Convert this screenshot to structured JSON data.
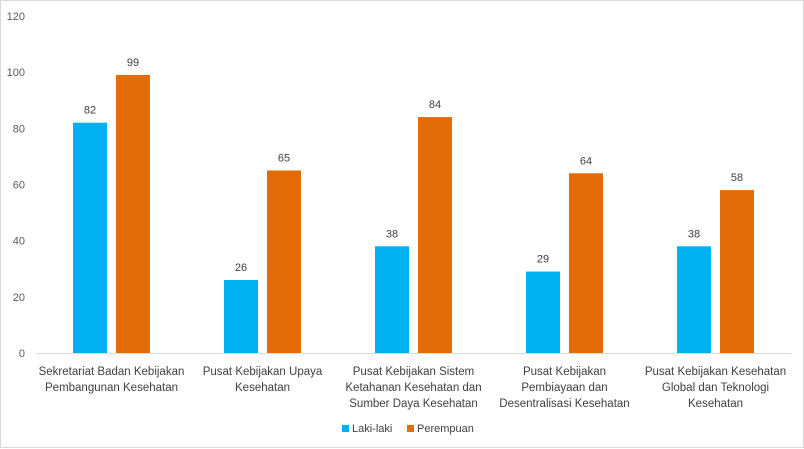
{
  "chart_data": {
    "type": "bar",
    "categories": [
      [
        "Sekretariat Badan Kebijakan",
        "Pembangunan Kesehatan"
      ],
      [
        "Pusat Kebijakan Upaya",
        "Kesehatan"
      ],
      [
        "Pusat Kebijakan Sistem",
        "Ketahanan Kesehatan dan",
        "Sumber Daya Kesehatan"
      ],
      [
        "Pusat Kebijakan",
        "Pembiayaan dan",
        "Desentralisasi Kesehatan"
      ],
      [
        "Pusat Kebijakan Kesehatan",
        "Global dan Teknologi",
        "Kesehatan"
      ]
    ],
    "series": [
      {
        "name": "Laki-laki",
        "values": [
          82,
          26,
          38,
          29,
          38
        ],
        "color": "#00b0f0"
      },
      {
        "name": "Perempuan",
        "values": [
          99,
          65,
          84,
          64,
          58
        ],
        "color": "#e36c09"
      }
    ],
    "ylim": [
      0,
      120
    ],
    "yticks": [
      0,
      20,
      40,
      60,
      80,
      100,
      120
    ],
    "grid": false,
    "legend": "bottom-center",
    "title": "",
    "xlabel": "",
    "ylabel": ""
  }
}
